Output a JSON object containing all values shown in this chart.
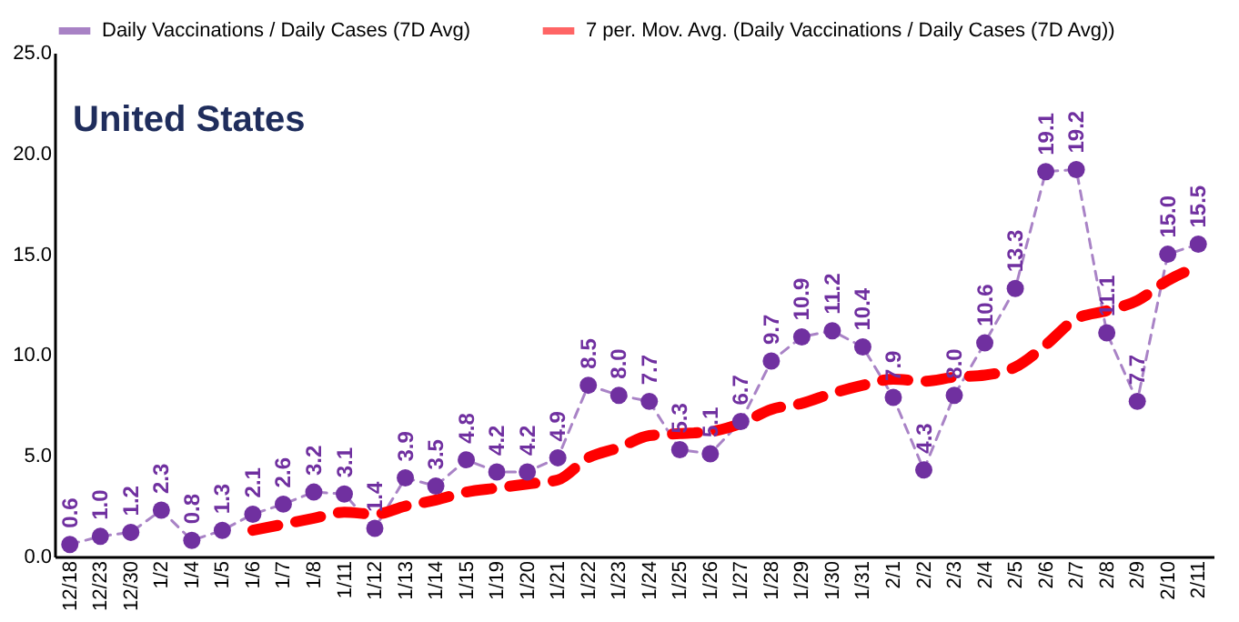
{
  "chart_data": {
    "type": "line",
    "title": "United States",
    "categories": [
      "12/18",
      "12/23",
      "12/30",
      "1/2",
      "1/4",
      "1/5",
      "1/6",
      "1/7",
      "1/8",
      "1/11",
      "1/12",
      "1/13",
      "1/14",
      "1/15",
      "1/19",
      "1/20",
      "1/21",
      "1/22",
      "1/23",
      "1/24",
      "1/25",
      "1/26",
      "1/27",
      "1/28",
      "1/29",
      "1/30",
      "1/31",
      "2/1",
      "2/2",
      "2/3",
      "2/4",
      "2/5",
      "2/6",
      "2/7",
      "2/8",
      "2/9",
      "2/10",
      "2/11"
    ],
    "series": [
      {
        "name": "Daily Vaccinations / Daily Cases (7D Avg)",
        "color": "#7030a0",
        "marker": "circle",
        "line_style": "dashed",
        "value_labels": [
          "0.6",
          "1.0",
          "1.2",
          "2.3",
          "0.8",
          "1.3",
          "2.1",
          "2.6",
          "3.2",
          "3.1",
          "1.4",
          "3.9",
          "3.5",
          "4.8",
          "4.2",
          "4.2",
          "4.9",
          "8.5",
          "8.0",
          "7.7",
          "5.3",
          "5.1",
          "6.7",
          "9.7",
          "10.9",
          "11.2",
          "10.4",
          "7.9",
          "4.3",
          "8.0",
          "10.6",
          "13.3",
          "19.1",
          "19.2",
          "11.1",
          "7.7",
          "15.0",
          "15.5"
        ],
        "values": [
          0.6,
          1.0,
          1.2,
          2.3,
          0.8,
          1.3,
          2.1,
          2.6,
          3.2,
          3.1,
          1.4,
          3.9,
          3.5,
          4.8,
          4.2,
          4.2,
          4.9,
          8.5,
          8.0,
          7.7,
          5.3,
          5.1,
          6.7,
          9.7,
          10.9,
          11.2,
          10.4,
          7.9,
          4.3,
          8.0,
          10.6,
          13.3,
          19.1,
          19.2,
          11.1,
          7.7,
          15.0,
          15.5
        ]
      },
      {
        "name": "7 per. Mov. Avg. (Daily Vaccinations / Daily Cases (7D Avg))",
        "color": "#ff0000",
        "marker": "none",
        "line_style": "dashed",
        "values": [
          null,
          null,
          null,
          null,
          null,
          null,
          1.3,
          1.6,
          1.9,
          2.2,
          2.1,
          2.5,
          2.8,
          3.2,
          3.4,
          3.6,
          3.8,
          4.9,
          5.4,
          6.0,
          6.1,
          6.2,
          6.6,
          7.3,
          7.6,
          8.1,
          8.5,
          8.8,
          8.7,
          8.9,
          9.0,
          9.4,
          10.5,
          11.8,
          12.2,
          12.7,
          13.7,
          14.4
        ]
      }
    ],
    "ylim": [
      0,
      25
    ],
    "yticks": [
      {
        "value": 0,
        "label": "0.0"
      },
      {
        "value": 5,
        "label": "5.0"
      },
      {
        "value": 10,
        "label": "10.0"
      },
      {
        "value": 15,
        "label": "15.0"
      },
      {
        "value": 20,
        "label": "20.0"
      },
      {
        "value": 25,
        "label": "25.0"
      }
    ],
    "grid": false,
    "legend": "top"
  }
}
